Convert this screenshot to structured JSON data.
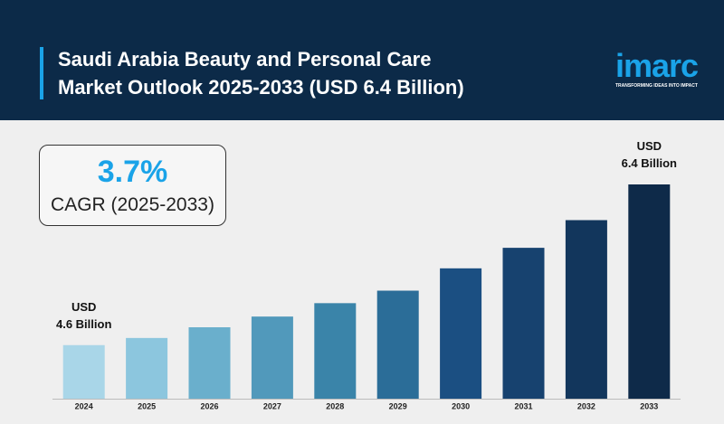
{
  "chart_data": {
    "type": "bar",
    "title": "Saudi Arabia Beauty and Personal Care\nMarket Outlook 2025-2033 (USD 6.4 Billion)",
    "logo": "imarc",
    "tagline": "TRANSFORMING IDEAS INTO IMPACT",
    "cagr": "3.7%",
    "cagr_label": "CAGR (2025-2033)",
    "categories": [
      "2024",
      "2025",
      "2026",
      "2027",
      "2028",
      "2029",
      "2030",
      "2031",
      "2032",
      "2033"
    ],
    "values": [
      4.6,
      4.68,
      4.8,
      4.92,
      5.07,
      5.21,
      5.46,
      5.69,
      6.0,
      6.4
    ],
    "value_labels": [
      "USD\n4.6 Billion",
      null,
      null,
      null,
      null,
      null,
      null,
      null,
      null,
      "USD\n6.4 Billion"
    ],
    "colors": [
      "#a9d6e8",
      "#8cc6de",
      "#6aafcc",
      "#5199bb",
      "#3a84a9",
      "#2b6d98",
      "#1b4f82",
      "#17426f",
      "#12365c",
      "#0e2a49"
    ],
    "ylim": [
      4.0,
      6.8
    ]
  }
}
